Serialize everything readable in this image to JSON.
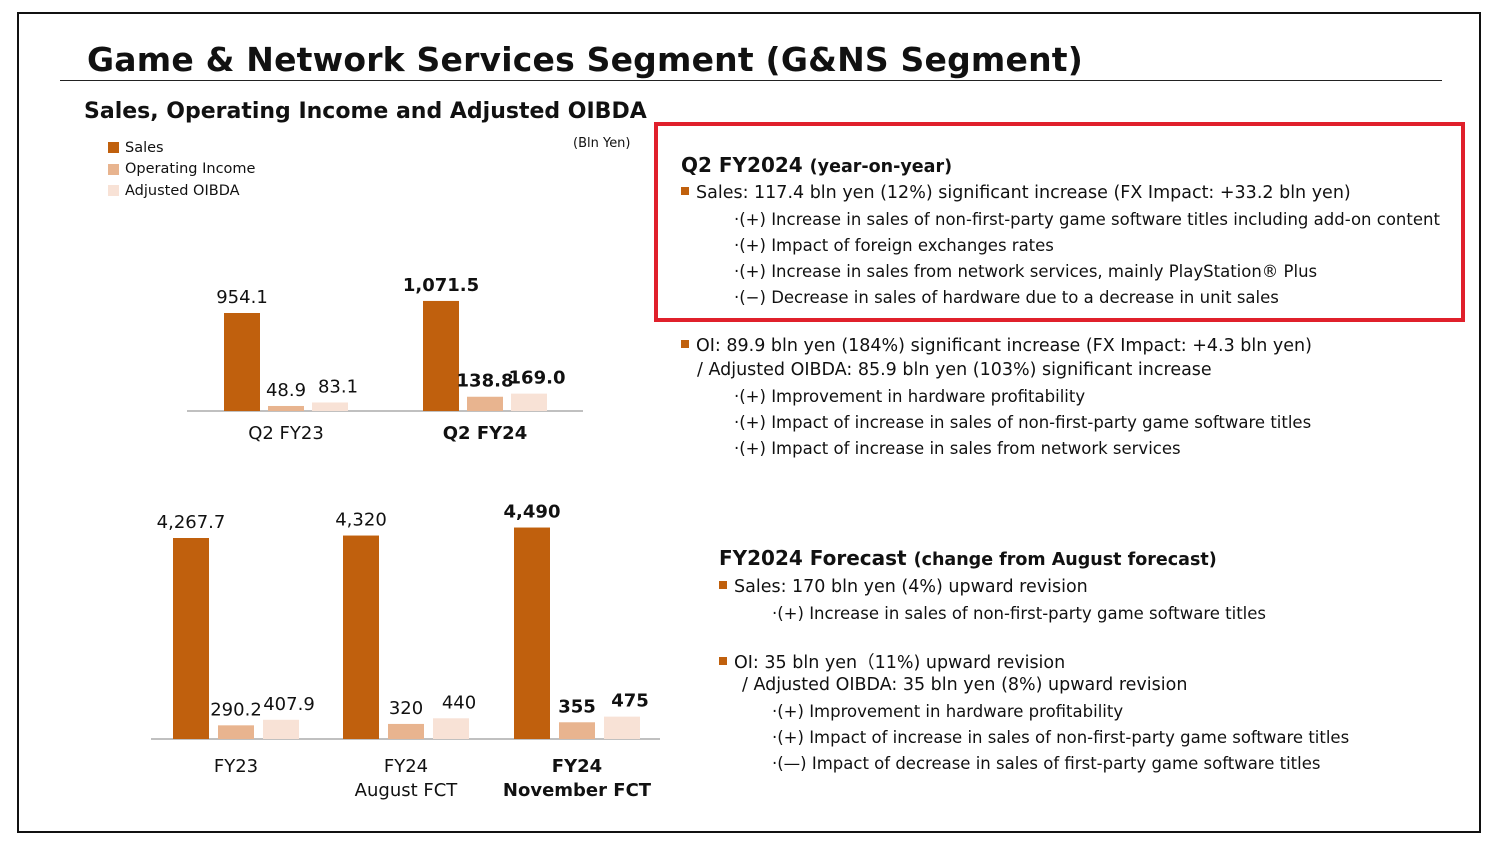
{
  "slide": {
    "title": "Game & Network Services Segment (G&NS Segment)",
    "subtitle": "Sales, Operating Income and Adjusted OIBDA",
    "unit": "(Bln Yen)"
  },
  "legend": [
    {
      "label": "Sales",
      "color": "#c0600d"
    },
    {
      "label": "Operating Income",
      "color": "#e8b48f"
    },
    {
      "label": "Adjusted OIBDA",
      "color": "#f8e2d6"
    }
  ],
  "colors": {
    "sales": "#c0600d",
    "oi": "#e8b48f",
    "oibda": "#f8e2d6",
    "highlight": "#e0202b",
    "bullet": "#c0600d"
  },
  "chart_data": [
    {
      "type": "bar",
      "categories": [
        "Q2 FY23",
        "Q2 FY24"
      ],
      "category_bold": [
        false,
        true
      ],
      "series": [
        {
          "name": "Sales",
          "values": [
            954.1,
            1071.5
          ],
          "labels": [
            "954.1",
            "1,071.5"
          ]
        },
        {
          "name": "Operating Income",
          "values": [
            48.9,
            138.8
          ],
          "labels": [
            "48.9",
            "138.8"
          ]
        },
        {
          "name": "Adjusted OIBDA",
          "values": [
            83.1,
            169.0
          ],
          "labels": [
            "83.1",
            "169.0"
          ]
        }
      ]
    },
    {
      "type": "bar",
      "categories": [
        [
          "FY23"
        ],
        [
          "FY24",
          "August FCT"
        ],
        [
          "FY24",
          "November FCT"
        ]
      ],
      "category_bold": [
        false,
        false,
        true
      ],
      "series": [
        {
          "name": "Sales",
          "values": [
            4267.7,
            4320,
            4490
          ],
          "labels": [
            "4,267.7",
            "4,320",
            "4,490"
          ]
        },
        {
          "name": "Operating Income",
          "values": [
            290.2,
            320,
            355
          ],
          "labels": [
            "290.2",
            "320",
            "355"
          ]
        },
        {
          "name": "Adjusted OIBDA",
          "values": [
            407.9,
            440,
            475
          ],
          "labels": [
            "407.9",
            "440",
            "475"
          ]
        }
      ]
    }
  ],
  "q2": {
    "heading": "Q2 FY2024",
    "heading_note": "(year-on-year)",
    "sales": "Sales: 117.4 bln yen (12%) significant increase (FX Impact: +33.2 bln yen)",
    "sales_items": [
      "·(+) Increase in sales of non-first-party game software titles including add-on content",
      "·(+) Impact of foreign exchanges rates",
      "·(+) Increase in sales from network services, mainly PlayStation® Plus",
      "·(−) Decrease in sales of hardware due to a decrease in unit sales"
    ],
    "oi": "OI:  89.9 bln yen (184%) significant increase (FX Impact: +4.3 bln yen)",
    "oibda": "/ Adjusted OIBDA: 85.9 bln yen (103%) significant increase",
    "oi_items": [
      "·(+) Improvement in hardware profitability",
      "·(+) Impact of increase in sales of non-first-party game software titles",
      "·(+) Impact of increase in sales from network services"
    ]
  },
  "fy": {
    "heading": "FY2024 Forecast",
    "heading_note": "(change from August forecast)",
    "sales": "Sales: 170 bln yen (4%) upward revision",
    "sales_items": [
      "·(+) Increase in sales of non-first-party game software titles"
    ],
    "oi": "OI: 35 bln yen（11%) upward revision",
    "oibda": "/ Adjusted OIBDA: 35 bln yen (8%) upward revision",
    "oi_items": [
      "·(+) Improvement in hardware profitability",
      "·(+) Impact of increase in sales of non-first-party game software titles",
      "·(—) Impact of decrease in sales of first-party game software titles"
    ]
  }
}
